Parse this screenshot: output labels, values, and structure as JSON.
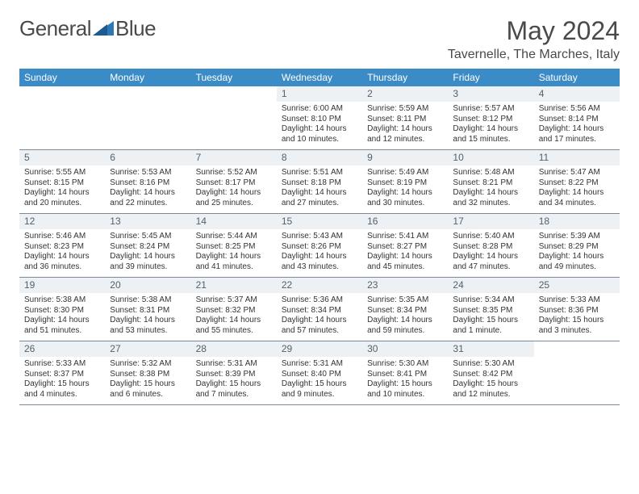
{
  "brand": {
    "part1": "General",
    "part2": "Blue"
  },
  "colors": {
    "header_bg": "#3b8bc6",
    "header_text": "#ffffff",
    "daynum_bg": "#eef1f4",
    "daynum_text": "#55606a",
    "body_text": "#333333",
    "rule": "#7a8a9a",
    "title": "#4a4a4a",
    "logo_accent": "#2f77b5"
  },
  "title": "May 2024",
  "location": "Tavernelle, The Marches, Italy",
  "weekdays": [
    "Sunday",
    "Monday",
    "Tuesday",
    "Wednesday",
    "Thursday",
    "Friday",
    "Saturday"
  ],
  "weeks": [
    [
      {
        "n": "",
        "sr": "",
        "ss": "",
        "dl": ""
      },
      {
        "n": "",
        "sr": "",
        "ss": "",
        "dl": ""
      },
      {
        "n": "",
        "sr": "",
        "ss": "",
        "dl": ""
      },
      {
        "n": "1",
        "sr": "Sunrise: 6:00 AM",
        "ss": "Sunset: 8:10 PM",
        "dl": "Daylight: 14 hours and 10 minutes."
      },
      {
        "n": "2",
        "sr": "Sunrise: 5:59 AM",
        "ss": "Sunset: 8:11 PM",
        "dl": "Daylight: 14 hours and 12 minutes."
      },
      {
        "n": "3",
        "sr": "Sunrise: 5:57 AM",
        "ss": "Sunset: 8:12 PM",
        "dl": "Daylight: 14 hours and 15 minutes."
      },
      {
        "n": "4",
        "sr": "Sunrise: 5:56 AM",
        "ss": "Sunset: 8:14 PM",
        "dl": "Daylight: 14 hours and 17 minutes."
      }
    ],
    [
      {
        "n": "5",
        "sr": "Sunrise: 5:55 AM",
        "ss": "Sunset: 8:15 PM",
        "dl": "Daylight: 14 hours and 20 minutes."
      },
      {
        "n": "6",
        "sr": "Sunrise: 5:53 AM",
        "ss": "Sunset: 8:16 PM",
        "dl": "Daylight: 14 hours and 22 minutes."
      },
      {
        "n": "7",
        "sr": "Sunrise: 5:52 AM",
        "ss": "Sunset: 8:17 PM",
        "dl": "Daylight: 14 hours and 25 minutes."
      },
      {
        "n": "8",
        "sr": "Sunrise: 5:51 AM",
        "ss": "Sunset: 8:18 PM",
        "dl": "Daylight: 14 hours and 27 minutes."
      },
      {
        "n": "9",
        "sr": "Sunrise: 5:49 AM",
        "ss": "Sunset: 8:19 PM",
        "dl": "Daylight: 14 hours and 30 minutes."
      },
      {
        "n": "10",
        "sr": "Sunrise: 5:48 AM",
        "ss": "Sunset: 8:21 PM",
        "dl": "Daylight: 14 hours and 32 minutes."
      },
      {
        "n": "11",
        "sr": "Sunrise: 5:47 AM",
        "ss": "Sunset: 8:22 PM",
        "dl": "Daylight: 14 hours and 34 minutes."
      }
    ],
    [
      {
        "n": "12",
        "sr": "Sunrise: 5:46 AM",
        "ss": "Sunset: 8:23 PM",
        "dl": "Daylight: 14 hours and 36 minutes."
      },
      {
        "n": "13",
        "sr": "Sunrise: 5:45 AM",
        "ss": "Sunset: 8:24 PM",
        "dl": "Daylight: 14 hours and 39 minutes."
      },
      {
        "n": "14",
        "sr": "Sunrise: 5:44 AM",
        "ss": "Sunset: 8:25 PM",
        "dl": "Daylight: 14 hours and 41 minutes."
      },
      {
        "n": "15",
        "sr": "Sunrise: 5:43 AM",
        "ss": "Sunset: 8:26 PM",
        "dl": "Daylight: 14 hours and 43 minutes."
      },
      {
        "n": "16",
        "sr": "Sunrise: 5:41 AM",
        "ss": "Sunset: 8:27 PM",
        "dl": "Daylight: 14 hours and 45 minutes."
      },
      {
        "n": "17",
        "sr": "Sunrise: 5:40 AM",
        "ss": "Sunset: 8:28 PM",
        "dl": "Daylight: 14 hours and 47 minutes."
      },
      {
        "n": "18",
        "sr": "Sunrise: 5:39 AM",
        "ss": "Sunset: 8:29 PM",
        "dl": "Daylight: 14 hours and 49 minutes."
      }
    ],
    [
      {
        "n": "19",
        "sr": "Sunrise: 5:38 AM",
        "ss": "Sunset: 8:30 PM",
        "dl": "Daylight: 14 hours and 51 minutes."
      },
      {
        "n": "20",
        "sr": "Sunrise: 5:38 AM",
        "ss": "Sunset: 8:31 PM",
        "dl": "Daylight: 14 hours and 53 minutes."
      },
      {
        "n": "21",
        "sr": "Sunrise: 5:37 AM",
        "ss": "Sunset: 8:32 PM",
        "dl": "Daylight: 14 hours and 55 minutes."
      },
      {
        "n": "22",
        "sr": "Sunrise: 5:36 AM",
        "ss": "Sunset: 8:34 PM",
        "dl": "Daylight: 14 hours and 57 minutes."
      },
      {
        "n": "23",
        "sr": "Sunrise: 5:35 AM",
        "ss": "Sunset: 8:34 PM",
        "dl": "Daylight: 14 hours and 59 minutes."
      },
      {
        "n": "24",
        "sr": "Sunrise: 5:34 AM",
        "ss": "Sunset: 8:35 PM",
        "dl": "Daylight: 15 hours and 1 minute."
      },
      {
        "n": "25",
        "sr": "Sunrise: 5:33 AM",
        "ss": "Sunset: 8:36 PM",
        "dl": "Daylight: 15 hours and 3 minutes."
      }
    ],
    [
      {
        "n": "26",
        "sr": "Sunrise: 5:33 AM",
        "ss": "Sunset: 8:37 PM",
        "dl": "Daylight: 15 hours and 4 minutes."
      },
      {
        "n": "27",
        "sr": "Sunrise: 5:32 AM",
        "ss": "Sunset: 8:38 PM",
        "dl": "Daylight: 15 hours and 6 minutes."
      },
      {
        "n": "28",
        "sr": "Sunrise: 5:31 AM",
        "ss": "Sunset: 8:39 PM",
        "dl": "Daylight: 15 hours and 7 minutes."
      },
      {
        "n": "29",
        "sr": "Sunrise: 5:31 AM",
        "ss": "Sunset: 8:40 PM",
        "dl": "Daylight: 15 hours and 9 minutes."
      },
      {
        "n": "30",
        "sr": "Sunrise: 5:30 AM",
        "ss": "Sunset: 8:41 PM",
        "dl": "Daylight: 15 hours and 10 minutes."
      },
      {
        "n": "31",
        "sr": "Sunrise: 5:30 AM",
        "ss": "Sunset: 8:42 PM",
        "dl": "Daylight: 15 hours and 12 minutes."
      },
      {
        "n": "",
        "sr": "",
        "ss": "",
        "dl": ""
      }
    ]
  ]
}
